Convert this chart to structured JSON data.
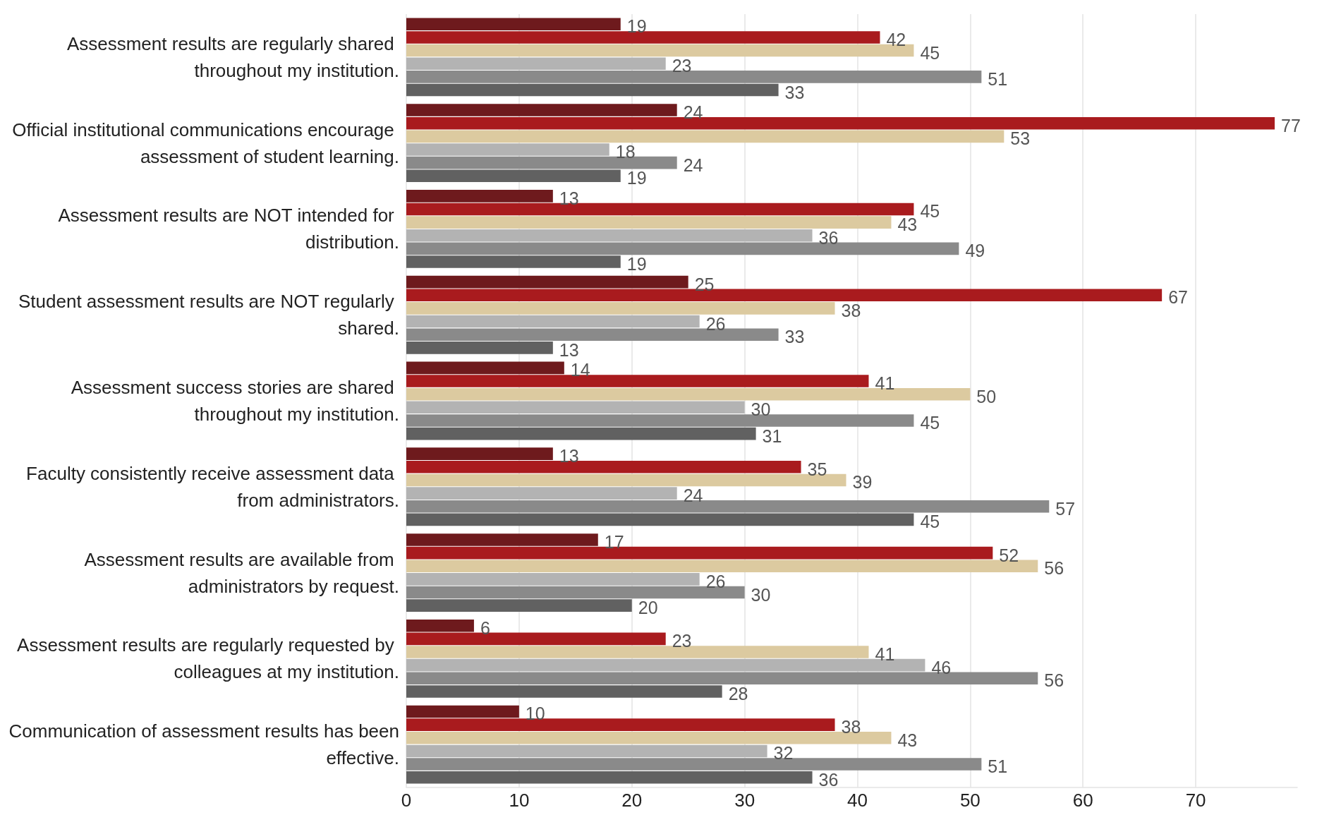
{
  "chart_data": {
    "type": "bar",
    "orientation": "horizontal",
    "categories": [
      "Assessment results are regularly shared throughout my institution.",
      "Official institutional communications encourage assessment of student learning.",
      "Assessment results are NOT intended for distribution.",
      "Student assessment results are NOT regularly shared.",
      "Assessment success stories are shared throughout my institution.",
      "Faculty consistently receive assessment data from administrators.",
      "Assessment results are available from administrators by request.",
      "Assessment results are regularly requested by colleagues at my institution.",
      "Communication of assessment results has been effective."
    ],
    "series": [
      {
        "color": "#6e1a1d",
        "values": [
          19,
          24,
          13,
          25,
          14,
          13,
          17,
          6,
          10
        ]
      },
      {
        "color": "#a91b1e",
        "values": [
          42,
          77,
          45,
          67,
          41,
          35,
          52,
          23,
          38
        ]
      },
      {
        "color": "#dccaa0",
        "values": [
          45,
          53,
          43,
          38,
          50,
          39,
          56,
          41,
          43
        ]
      },
      {
        "color": "#b3b3b3",
        "values": [
          23,
          18,
          36,
          26,
          30,
          24,
          26,
          46,
          32
        ]
      },
      {
        "color": "#8a8a8a",
        "values": [
          51,
          24,
          49,
          33,
          45,
          57,
          30,
          56,
          51
        ]
      },
      {
        "color": "#616161",
        "values": [
          33,
          19,
          19,
          13,
          31,
          45,
          20,
          28,
          36
        ]
      }
    ],
    "xlim": [
      0,
      79
    ],
    "xticks": [
      0,
      10,
      20,
      30,
      40,
      50,
      60,
      70
    ],
    "grid": "x",
    "data_labels": true
  }
}
